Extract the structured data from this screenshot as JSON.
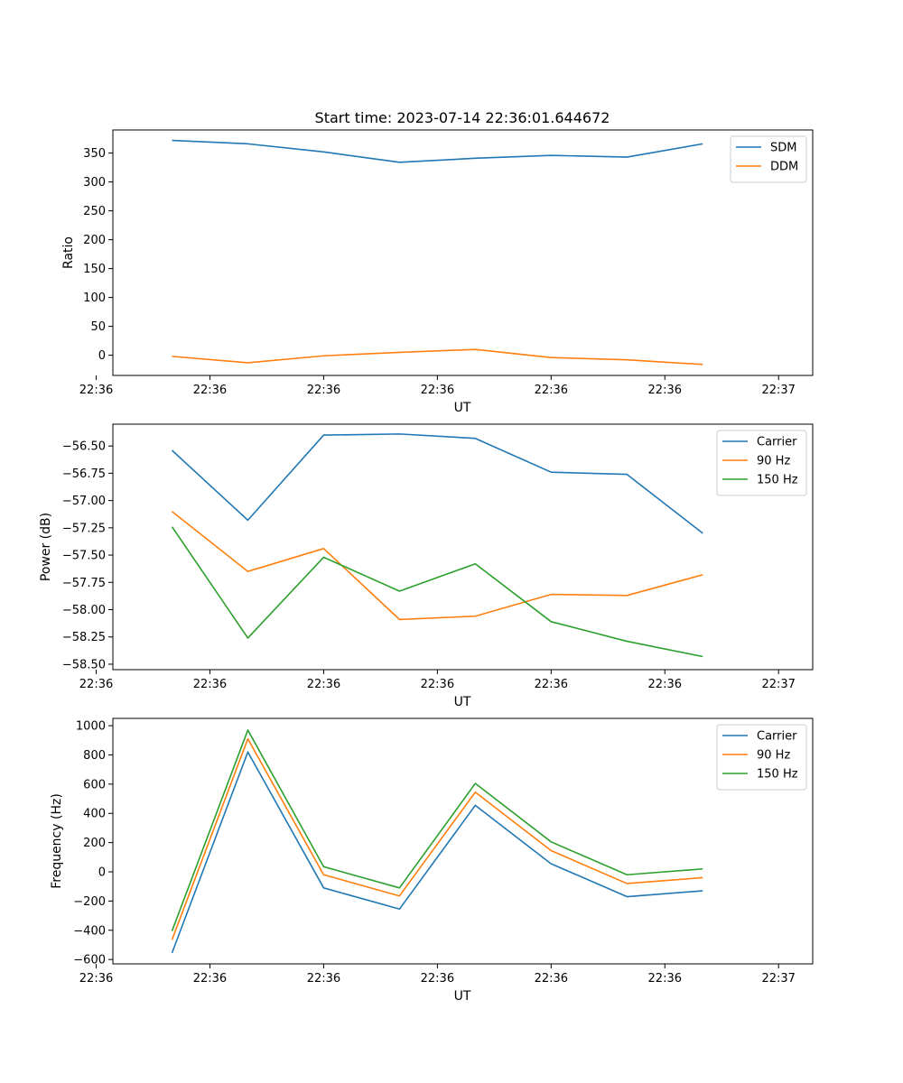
{
  "figure": {
    "title": "Start time: 2023-07-14 22:36:01.644672",
    "colors": {
      "blue": "#1f77b4",
      "orange": "#ff7f0e",
      "green": "#2ca02c"
    }
  },
  "chart_data": [
    {
      "type": "line",
      "title": "Start time: 2023-07-14 22:36:01.644672",
      "xlabel": "UT",
      "ylabel": "Ratio",
      "x": [
        1,
        2,
        3,
        4,
        5,
        6,
        7,
        8
      ],
      "xlim": [
        0.22,
        9.45
      ],
      "xticks": [
        {
          "value": 0.0,
          "label": "22:36"
        },
        {
          "value": 1.5,
          "label": "22:36"
        },
        {
          "value": 3.0,
          "label": "22:36"
        },
        {
          "value": 4.5,
          "label": "22:36"
        },
        {
          "value": 6.0,
          "label": "22:36"
        },
        {
          "value": 7.5,
          "label": "22:36"
        },
        {
          "value": 9.0,
          "label": "22:37"
        }
      ],
      "ylim": [
        -35,
        390
      ],
      "yticks": [
        0,
        50,
        100,
        150,
        200,
        250,
        300,
        350
      ],
      "legend": "top-right",
      "series": [
        {
          "name": "SDM",
          "color": "#1f77b4",
          "values": [
            372,
            366,
            352,
            334,
            341,
            346,
            343,
            366
          ]
        },
        {
          "name": "DDM",
          "color": "#ff7f0e",
          "values": [
            -2,
            -13,
            -1,
            5,
            10,
            -4,
            -8,
            -16
          ]
        }
      ]
    },
    {
      "type": "line",
      "title": "",
      "xlabel": "UT",
      "ylabel": "Power (dB)",
      "x": [
        1,
        2,
        3,
        4,
        5,
        6,
        7,
        8
      ],
      "xlim": [
        0.22,
        9.45
      ],
      "xticks": [
        {
          "value": 0.0,
          "label": "22:36"
        },
        {
          "value": 1.5,
          "label": "22:36"
        },
        {
          "value": 3.0,
          "label": "22:36"
        },
        {
          "value": 4.5,
          "label": "22:36"
        },
        {
          "value": 6.0,
          "label": "22:36"
        },
        {
          "value": 7.5,
          "label": "22:36"
        },
        {
          "value": 9.0,
          "label": "22:37"
        }
      ],
      "ylim": [
        -58.55,
        -56.3
      ],
      "yticks": [
        -58.5,
        -58.25,
        -58.0,
        -57.75,
        -57.5,
        -57.25,
        -57.0,
        -56.75,
        -56.5
      ],
      "ytick_labels": [
        "−58.50",
        "−58.25",
        "−58.00",
        "−57.75",
        "−57.50",
        "−57.25",
        "−57.00",
        "−56.75",
        "−56.50"
      ],
      "legend": "top-right",
      "series": [
        {
          "name": "Carrier",
          "color": "#1f77b4",
          "values": [
            -56.54,
            -57.18,
            -56.4,
            -56.39,
            -56.43,
            -56.74,
            -56.76,
            -57.3
          ]
        },
        {
          "name": "90 Hz",
          "color": "#ff7f0e",
          "values": [
            -57.1,
            -57.65,
            -57.44,
            -58.09,
            -58.06,
            -57.86,
            -57.87,
            -57.68
          ]
        },
        {
          "name": "150 Hz",
          "color": "#2ca02c",
          "values": [
            -57.24,
            -58.26,
            -57.52,
            -57.83,
            -57.58,
            -58.11,
            -58.29,
            -58.43
          ]
        }
      ]
    },
    {
      "type": "line",
      "title": "",
      "xlabel": "UT",
      "ylabel": "Frequency (Hz)",
      "x": [
        1,
        2,
        3,
        4,
        5,
        6,
        7,
        8
      ],
      "xlim": [
        0.22,
        9.45
      ],
      "xticks": [
        {
          "value": 0.0,
          "label": "22:36"
        },
        {
          "value": 1.5,
          "label": "22:36"
        },
        {
          "value": 3.0,
          "label": "22:36"
        },
        {
          "value": 4.5,
          "label": "22:36"
        },
        {
          "value": 6.0,
          "label": "22:36"
        },
        {
          "value": 7.5,
          "label": "22:36"
        },
        {
          "value": 9.0,
          "label": "22:37"
        }
      ],
      "ylim": [
        -630,
        1050
      ],
      "yticks": [
        -600,
        -400,
        -200,
        0,
        200,
        400,
        600,
        800,
        1000
      ],
      "ytick_labels": [
        "−600",
        "−400",
        "−200",
        "0",
        "200",
        "400",
        "600",
        "800",
        "1000"
      ],
      "legend": "top-right",
      "series": [
        {
          "name": "Carrier",
          "color": "#1f77b4",
          "values": [
            -555,
            820,
            -110,
            -255,
            455,
            55,
            -170,
            -130
          ]
        },
        {
          "name": "90 Hz",
          "color": "#ff7f0e",
          "values": [
            -465,
            910,
            -20,
            -165,
            545,
            145,
            -80,
            -40
          ]
        },
        {
          "name": "150 Hz",
          "color": "#2ca02c",
          "values": [
            -405,
            970,
            35,
            -110,
            605,
            205,
            -20,
            20
          ]
        }
      ]
    }
  ]
}
